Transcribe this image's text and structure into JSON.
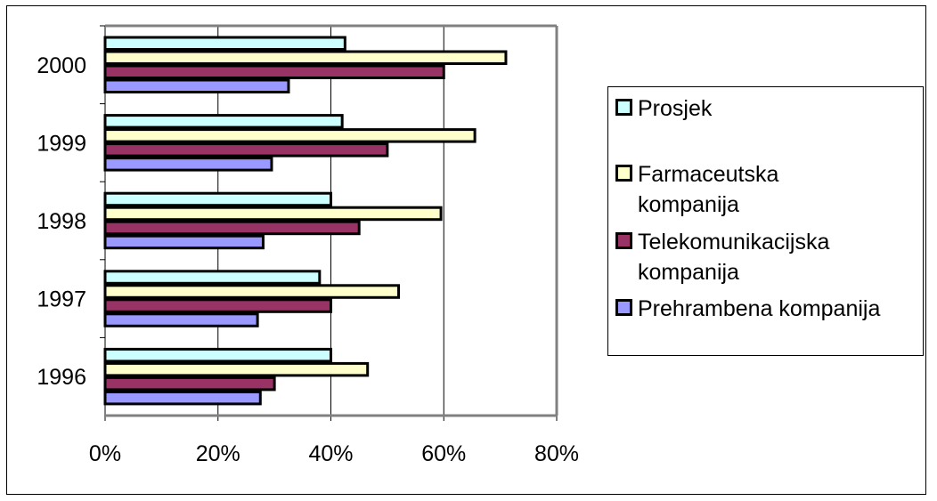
{
  "chart_data": {
    "type": "bar",
    "orientation": "horizontal",
    "categories": [
      "1996",
      "1997",
      "1998",
      "1999",
      "2000"
    ],
    "series": [
      {
        "name": "Prosjek",
        "color": "#CCFFFF",
        "values": [
          40,
          38,
          40,
          42,
          42.5
        ]
      },
      {
        "name": "Farmaceutska kompanija",
        "color": "#FFFFCC",
        "values": [
          46.5,
          52,
          59.5,
          65.5,
          71
        ]
      },
      {
        "name": "Telekomunikacijska kompanija",
        "color": "#993366",
        "values": [
          30,
          40,
          45,
          50,
          60
        ]
      },
      {
        "name": "Prehrambena kompanija",
        "color": "#9999FF",
        "values": [
          27.5,
          27,
          28,
          29.5,
          32.5
        ]
      }
    ],
    "xlim": [
      0,
      80
    ],
    "xticks": [
      "0%",
      "20%",
      "40%",
      "60%",
      "80%"
    ],
    "grid": "vertical",
    "legend_position": "right"
  },
  "legend": {
    "items": [
      {
        "label": "Prosjek",
        "color": "#CCFFFF"
      },
      {
        "label": "Farmaceutska\nkompanija",
        "color": "#FFFFCC"
      },
      {
        "label": "Telekomunikacijska\nkompanija",
        "color": "#993366"
      },
      {
        "label": "Prehrambena kompanija",
        "color": "#9999FF"
      }
    ]
  }
}
